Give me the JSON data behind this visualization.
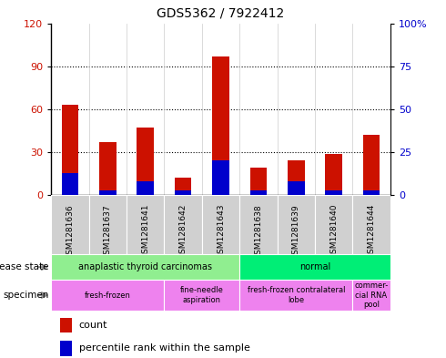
{
  "title": "GDS5362 / 7922412",
  "samples": [
    "GSM1281636",
    "GSM1281637",
    "GSM1281641",
    "GSM1281642",
    "GSM1281643",
    "GSM1281638",
    "GSM1281639",
    "GSM1281640",
    "GSM1281644"
  ],
  "counts": [
    63,
    37,
    47,
    12,
    97,
    19,
    24,
    29,
    42
  ],
  "percentile_ranks": [
    13,
    3,
    8,
    3,
    20,
    3,
    8,
    3,
    3
  ],
  "ylim_left": [
    0,
    120
  ],
  "ylim_right": [
    0,
    100
  ],
  "yticks_left": [
    0,
    30,
    60,
    90,
    120
  ],
  "yticks_right": [
    0,
    25,
    50,
    75,
    100
  ],
  "disease_color_atc": "#90EE90",
  "disease_color_normal": "#00EE76",
  "specimen_color_1": "#EE82EE",
  "specimen_color_2": "#FF77FF",
  "bar_color_count": "#CC1100",
  "bar_color_percentile": "#0000CC",
  "background_color": "#FFFFFF",
  "tick_label_color_left": "#CC1100",
  "tick_label_color_right": "#0000CC",
  "plot_bg": "#F0F0F0",
  "bar_width": 0.45
}
